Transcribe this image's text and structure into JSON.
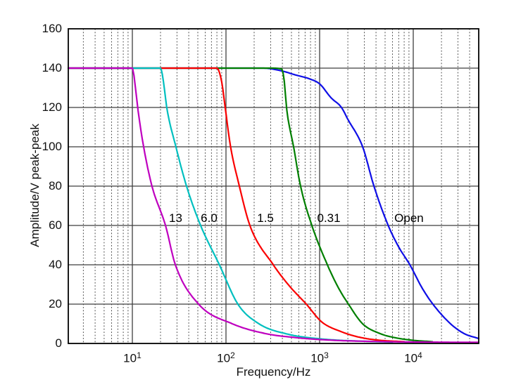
{
  "figure": {
    "background": "#ffffff"
  },
  "chart_data": {
    "type": "line",
    "title": "",
    "xlabel": "Frequency/Hz",
    "ylabel": "Amplitude/V peak-peak",
    "x_scale": "log",
    "y_scale": "linear",
    "xlim": [
      2.07,
      50000
    ],
    "ylim": [
      0,
      160
    ],
    "grid": {
      "major": "solid",
      "minor": "dotted-log-decades",
      "major_color": "#3f3f3f",
      "minor_color": "#4a4a4a"
    },
    "legend_position": "inline-curve-labels",
    "y_ticks": [
      {
        "label": "0",
        "value": 0
      },
      {
        "label": "20",
        "value": 20
      },
      {
        "label": "40",
        "value": 40
      },
      {
        "label": "60",
        "value": 60
      },
      {
        "label": "80",
        "value": 80
      },
      {
        "label": "100",
        "value": 100
      },
      {
        "label": "120",
        "value": 120
      },
      {
        "label": "140",
        "value": 140
      },
      {
        "label": "160",
        "value": 160
      }
    ],
    "x_ticks": [
      {
        "base": "10",
        "exponent": "1",
        "value": 10
      },
      {
        "base": "10",
        "exponent": "2",
        "value": 100
      },
      {
        "base": "10",
        "exponent": "3",
        "value": 1000
      },
      {
        "base": "10",
        "exponent": "4",
        "value": 10000
      }
    ],
    "x_major_gridlines": [
      10,
      100,
      1000,
      10000
    ],
    "y_major_gridlines": [
      20,
      40,
      60,
      80,
      100,
      120,
      140
    ],
    "annotations": [
      {
        "text": "13",
        "f": 29,
        "amp": 63.4
      },
      {
        "text": "6.0",
        "f": 66,
        "amp": 63.4
      },
      {
        "text": "1.5",
        "f": 264,
        "amp": 63.4
      },
      {
        "text": "0.31",
        "f": 1253,
        "amp": 63.4
      },
      {
        "text": "Open",
        "f": 9000,
        "amp": 63.4
      }
    ],
    "series": [
      {
        "name": "13",
        "color": "#BF00BF",
        "points": [
          [
            2.07,
            140
          ],
          [
            10,
            140
          ],
          [
            10.8,
            130
          ],
          [
            11.4,
            120
          ],
          [
            13.2,
            100
          ],
          [
            16.2,
            80
          ],
          [
            22.6,
            60
          ],
          [
            28.8,
            40
          ],
          [
            51,
            20
          ],
          [
            117,
            10
          ],
          [
            265,
            5
          ],
          [
            500,
            3.2
          ],
          [
            1170,
            1.8
          ],
          [
            5000,
            0.9
          ],
          [
            20000,
            0.65
          ],
          [
            50000,
            0.55
          ]
        ]
      },
      {
        "name": "6.0",
        "color": "#00BFBF",
        "points": [
          [
            2.07,
            140
          ],
          [
            20,
            140
          ],
          [
            21.5,
            133
          ],
          [
            23.3,
            120
          ],
          [
            29.2,
            100
          ],
          [
            37.9,
            80
          ],
          [
            53.6,
            60
          ],
          [
            85,
            40
          ],
          [
            134,
            20
          ],
          [
            225,
            10
          ],
          [
            450,
            4.8
          ],
          [
            1100,
            2.2
          ],
          [
            3000,
            1.1
          ],
          [
            6000,
            0.7
          ]
        ]
      },
      {
        "name": "1.5",
        "color": "#FA0000",
        "points": [
          [
            2.07,
            140
          ],
          [
            80,
            140
          ],
          [
            90,
            133
          ],
          [
            98,
            120
          ],
          [
            112,
            100
          ],
          [
            139,
            80
          ],
          [
            180,
            60
          ],
          [
            320,
            40
          ],
          [
            480,
            29
          ],
          [
            720,
            20
          ],
          [
            1050,
            11
          ],
          [
            1700,
            6
          ],
          [
            2640,
            3.2
          ],
          [
            4200,
            1.7
          ],
          [
            8000,
            0.9
          ]
        ]
      },
      {
        "name": "0.31",
        "color": "#007F00",
        "points": [
          [
            2.07,
            140
          ],
          [
            300,
            140
          ],
          [
            395,
            139.5
          ],
          [
            420,
            133
          ],
          [
            443,
            120
          ],
          [
            527,
            100
          ],
          [
            626,
            80
          ],
          [
            826,
            60
          ],
          [
            1210,
            40
          ],
          [
            1600,
            28
          ],
          [
            2030,
            20
          ],
          [
            2880,
            10
          ],
          [
            4430,
            5
          ],
          [
            6270,
            3
          ],
          [
            10000,
            1.6
          ],
          [
            16000,
            0.9
          ]
        ]
      },
      {
        "name": "Open",
        "color": "#0F0FE6",
        "points": [
          [
            2.07,
            140
          ],
          [
            100,
            140
          ],
          [
            250,
            140
          ],
          [
            400,
            138.5
          ],
          [
            555,
            136.5
          ],
          [
            785,
            134.5
          ],
          [
            1000,
            132
          ],
          [
            1320,
            125
          ],
          [
            1710,
            120
          ],
          [
            2000,
            114
          ],
          [
            2880,
            100
          ],
          [
            3800,
            80
          ],
          [
            5400,
            60
          ],
          [
            7000,
            49
          ],
          [
            9200,
            40
          ],
          [
            12500,
            28
          ],
          [
            16200,
            20
          ],
          [
            25000,
            10
          ],
          [
            35000,
            5
          ],
          [
            50000,
            2.5
          ]
        ]
      }
    ]
  }
}
